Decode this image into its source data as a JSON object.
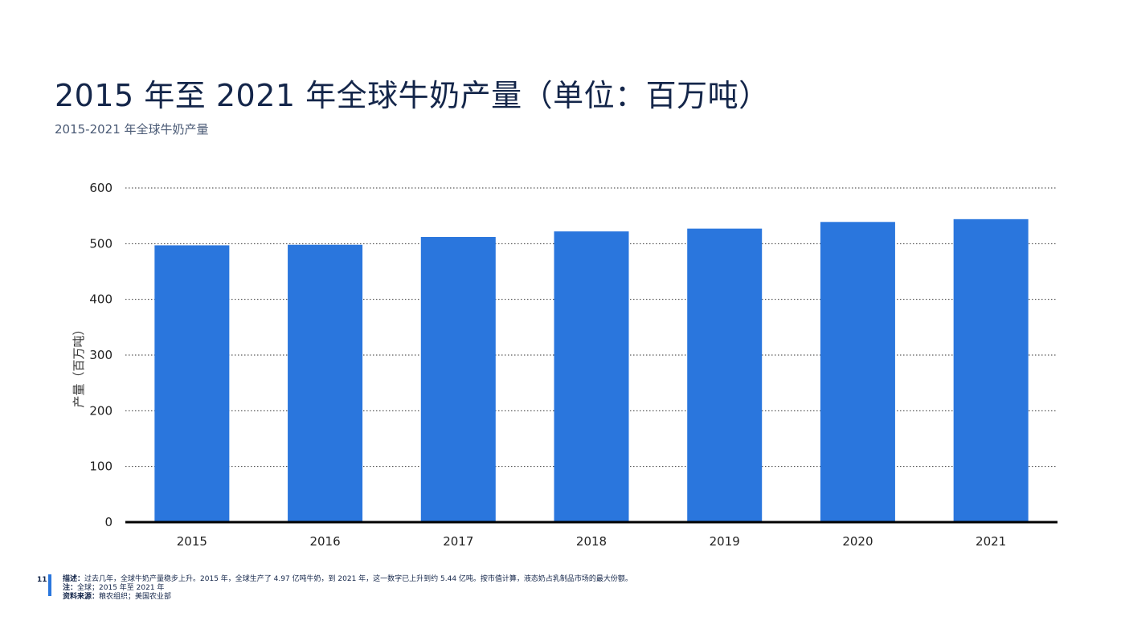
{
  "title": "2015 年至 2021 年全球牛奶产量（单位：百万吨）",
  "subtitle": "2015-2021 年全球牛奶产量",
  "footer": {
    "page_number": "11",
    "description_label": "描述：",
    "description": "过去几年，全球牛奶产量稳步上升。2015 年，全球生产了 4.97 亿吨牛奶，到 2021 年，这一数字已上升到约 5.44 亿吨。按市值计算，液态奶占乳制品市场的最大份额。",
    "note_label": "注：",
    "note": "全球；2015 年至 2021 年",
    "source_label": "资料来源：",
    "source": "粮农组织；美国农业部"
  },
  "colors": {
    "bar": "#2a76dd",
    "grid": "#333333",
    "axis": "#000000"
  },
  "chart_data": {
    "type": "bar",
    "categories": [
      "2015",
      "2016",
      "2017",
      "2018",
      "2019",
      "2020",
      "2021"
    ],
    "values": [
      497,
      498,
      512,
      522,
      527,
      539,
      544
    ],
    "ylabel": "产量（百万吨）",
    "xlabel": "",
    "ylim": [
      0,
      600
    ],
    "yticks": [
      0,
      100,
      200,
      300,
      400,
      500,
      600
    ],
    "grid": true,
    "legend": "none"
  }
}
